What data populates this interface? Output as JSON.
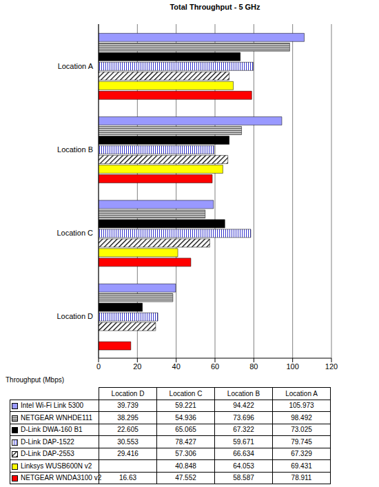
{
  "chart_data": {
    "type": "bar",
    "orientation": "horizontal",
    "title": "Total Throughput - 5 GHz",
    "x_label": "Throughput (Mbps)",
    "categories": [
      "Location D",
      "Location C",
      "Location B",
      "Location A"
    ],
    "series": [
      {
        "name": "Intel Wi-Fi Link 5300",
        "color": "#9999ff",
        "values": [
          39.739,
          59.221,
          94.422,
          105.973
        ]
      },
      {
        "name": "NETGEAR WNHDE111",
        "color": "#c0c0c0",
        "values": [
          38.295,
          54.936,
          73.696,
          98.492
        ]
      },
      {
        "name": "D-Link DWA-160 B1",
        "color": "#000000",
        "values": [
          22.605,
          65.065,
          67.322,
          73.025
        ]
      },
      {
        "name": "D-Link DAP-1522",
        "color": "#3333cc",
        "values": [
          30.553,
          78.427,
          59.671,
          79.745
        ]
      },
      {
        "name": "D-Link DAP-2553",
        "color": "#000000",
        "values": [
          29.416,
          57.306,
          66.634,
          67.329
        ]
      },
      {
        "name": "Linksys WUSB600N v2",
        "color": "#ffff00",
        "values": [
          null,
          40.848,
          64.053,
          69.431
        ]
      },
      {
        "name": "NETGEAR WNDA3100 v2",
        "color": "#ff0000",
        "values": [
          16.63,
          47.552,
          58.587,
          78.911
        ]
      }
    ],
    "xlim": [
      0,
      120
    ],
    "xticks": [
      0,
      20,
      40,
      60,
      80,
      100,
      120
    ],
    "grid": true
  }
}
